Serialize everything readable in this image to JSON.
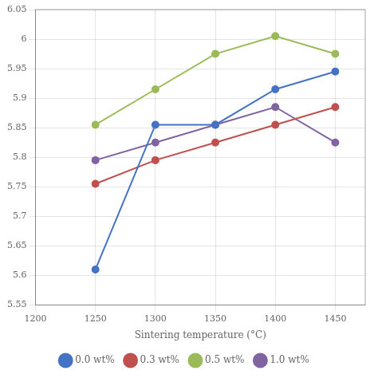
{
  "chart_data": {
    "type": "line",
    "x": [
      1250,
      1300,
      1350,
      1400,
      1450
    ],
    "series": [
      {
        "name": "0.0 wt%",
        "color": "#4472C4",
        "marker": "circle",
        "values": [
          5.61,
          5.855,
          5.855,
          5.915,
          5.945
        ]
      },
      {
        "name": "0.3 wt%",
        "color": "#C0504D",
        "marker": "circle",
        "values": [
          5.755,
          5.795,
          5.825,
          5.855,
          5.885
        ]
      },
      {
        "name": "0.5 wt%",
        "color": "#9BBB59",
        "marker": "circle",
        "values": [
          5.855,
          5.915,
          5.975,
          6.005,
          5.975
        ]
      },
      {
        "name": "1.0 wt%",
        "color": "#8064A2",
        "marker": "circle",
        "values": [
          5.795,
          5.825,
          5.855,
          5.885,
          5.825
        ]
      }
    ],
    "xlabel": "Sintering temperature (°C)",
    "xlim": [
      1200,
      1475
    ],
    "xticks": [
      1200,
      1250,
      1300,
      1350,
      1400,
      1450
    ],
    "ylim": [
      5.55,
      6.05
    ],
    "yticks": [
      5.55,
      5.6,
      5.65,
      5.7,
      5.75,
      5.8,
      5.85,
      5.9,
      5.95,
      6,
      6.05
    ],
    "grid": true,
    "legend": "bottom"
  }
}
